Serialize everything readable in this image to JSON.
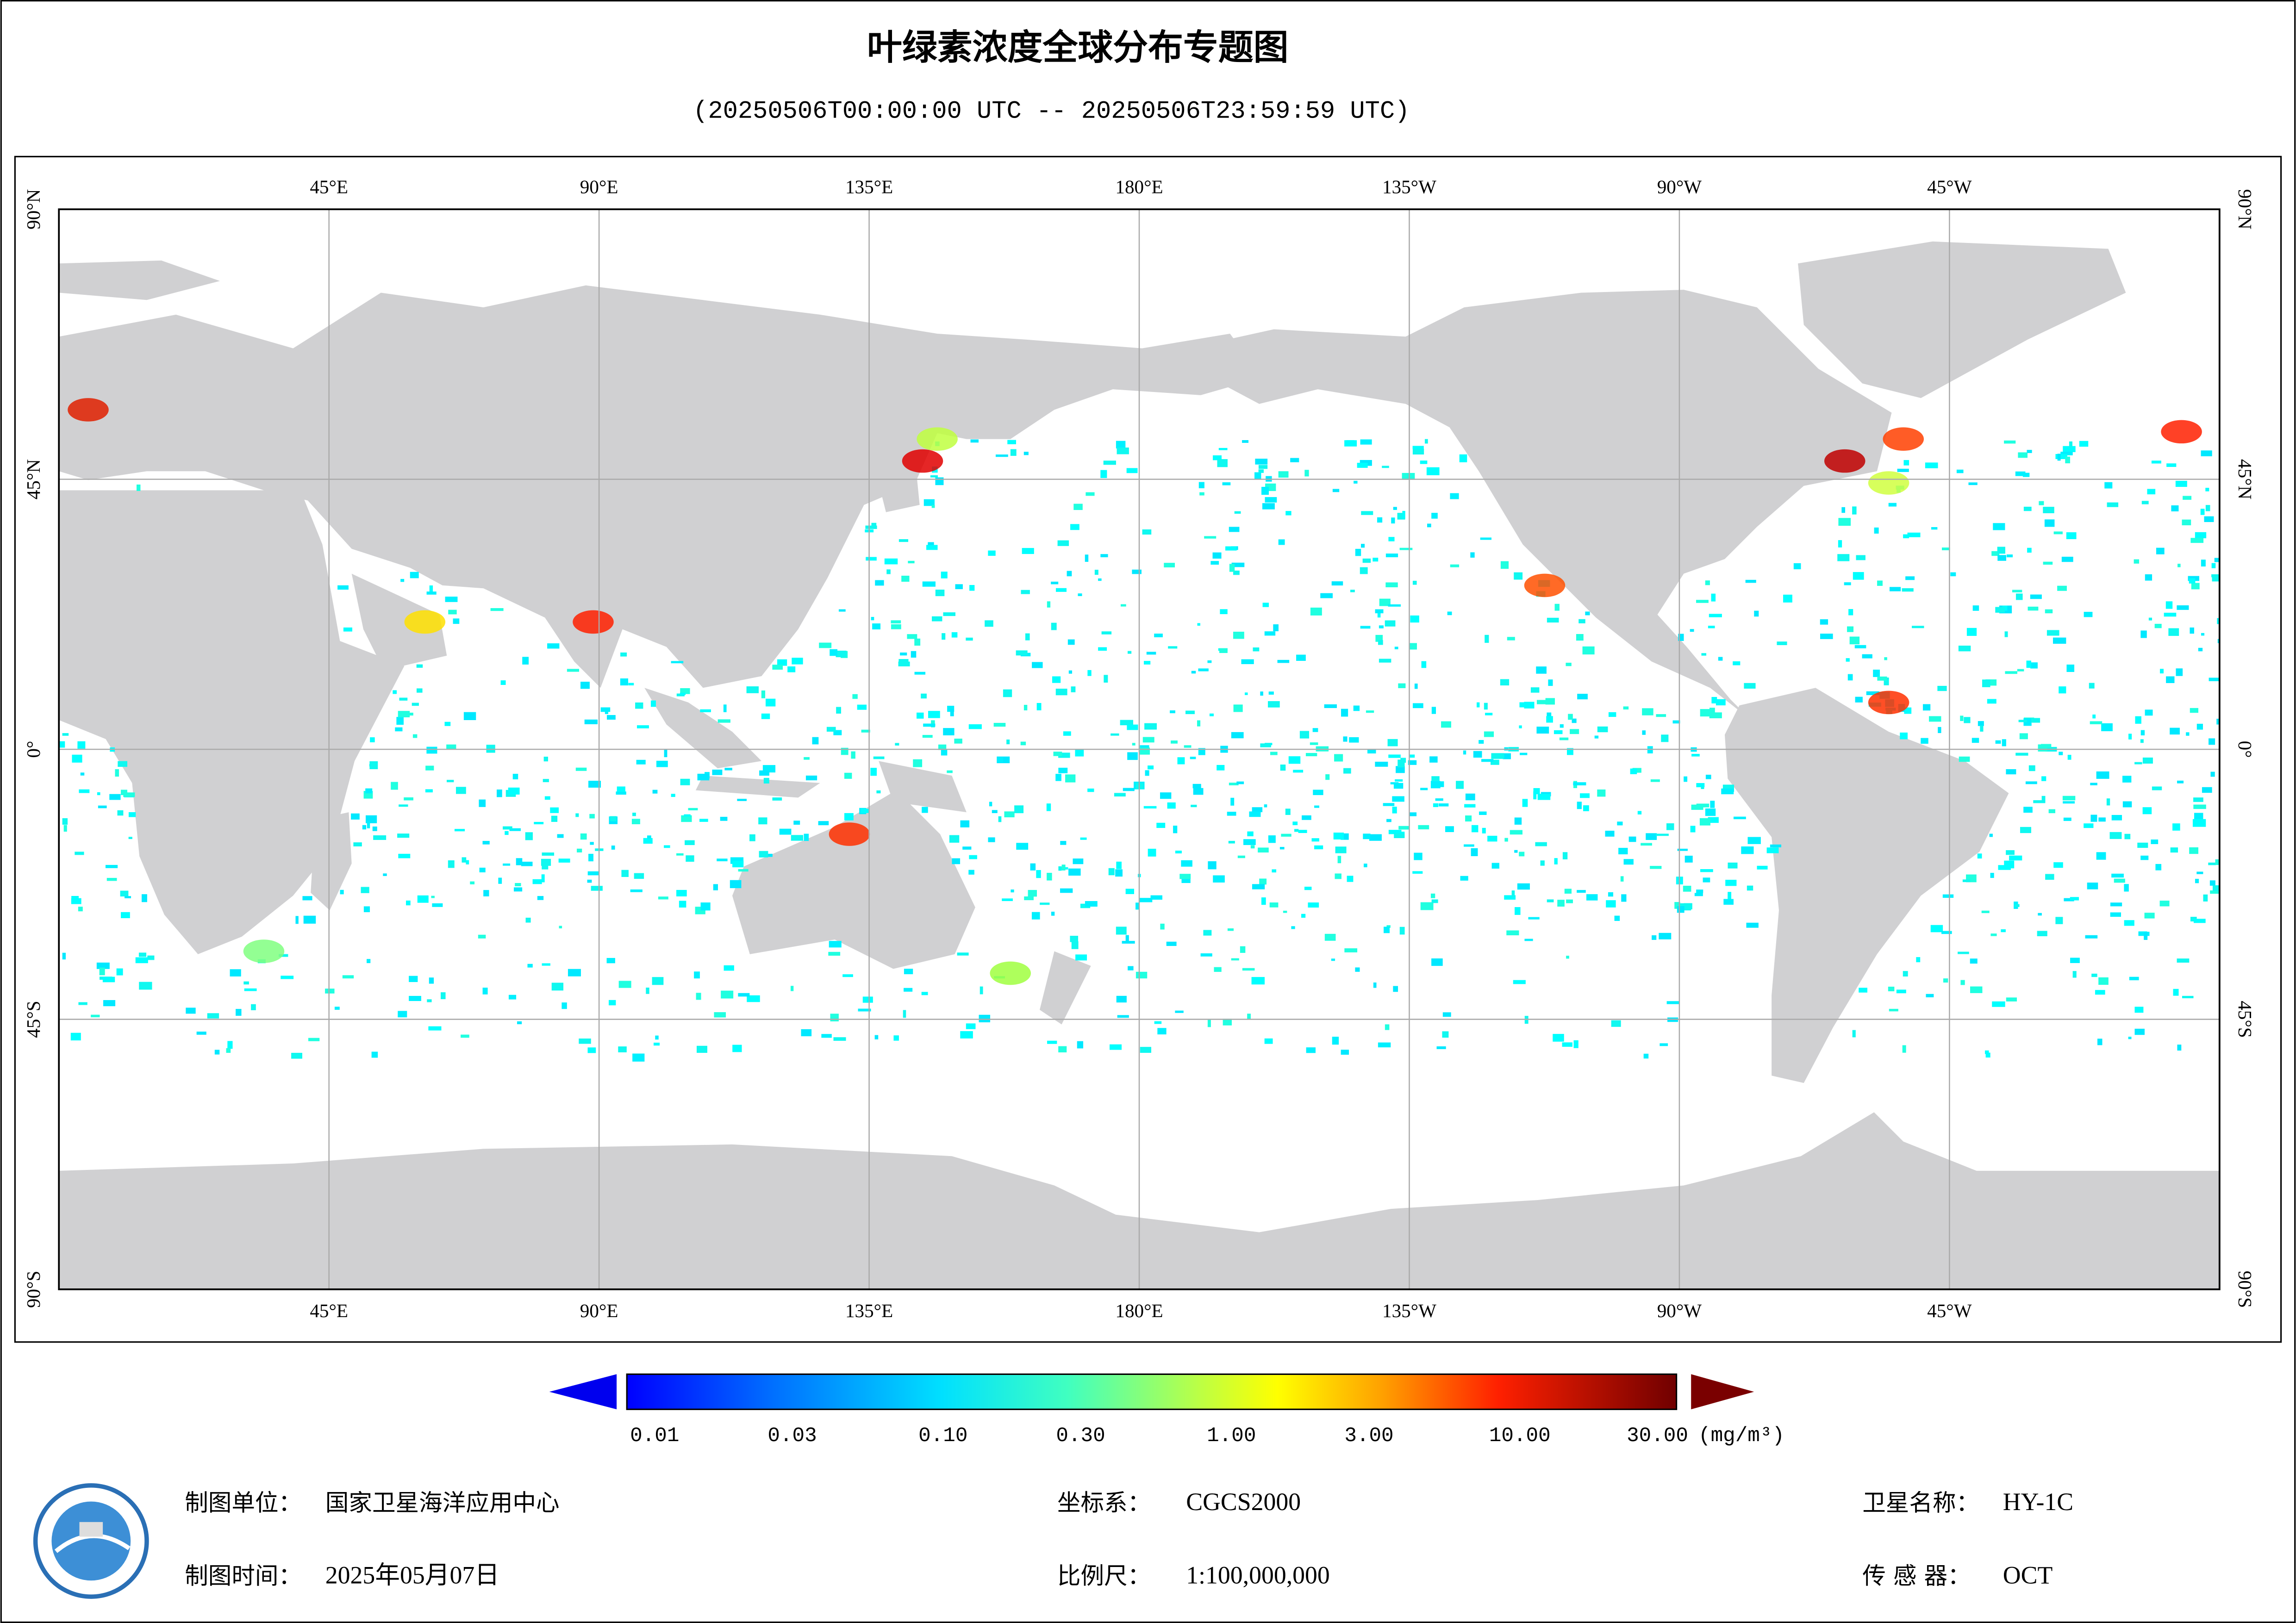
{
  "header": {
    "title": "叶绿素浓度全球分布专题图",
    "subtitle": "(20250506T00:00:00 UTC -- 20250506T23:59:59 UTC)"
  },
  "map": {
    "lon_range": [
      0,
      360
    ],
    "lat_range": [
      -90,
      90
    ],
    "lon_ticks": [
      {
        "value": 45,
        "label": "45°E"
      },
      {
        "value": 90,
        "label": "90°E"
      },
      {
        "value": 135,
        "label": "135°E"
      },
      {
        "value": 180,
        "label": "180°E"
      },
      {
        "value": 225,
        "label": "135°W"
      },
      {
        "value": 270,
        "label": "90°W"
      },
      {
        "value": 315,
        "label": "45°W"
      }
    ],
    "lat_ticks": [
      {
        "value": 90,
        "label": "90°N"
      },
      {
        "value": 45,
        "label": "45°N"
      },
      {
        "value": 0,
        "label": "0°"
      },
      {
        "value": -45,
        "label": "45°S"
      },
      {
        "value": -90,
        "label": "90°S"
      }
    ]
  },
  "colorbar": {
    "range": [
      0.01,
      30
    ],
    "scale": "log",
    "ticks": [
      0.01,
      0.03,
      {
        "value": 0.1,
        "label": "0.10"
      },
      {
        "value": 0.3,
        "label": "0.30"
      },
      {
        "value": 1,
        "label": "1.00"
      },
      {
        "value": 3,
        "label": "3.00"
      },
      {
        "value": 10,
        "label": "10.00"
      },
      {
        "value": 30,
        "label": "30.00"
      }
    ],
    "unit": "(mg/m³)"
  },
  "footer": {
    "unit": {
      "label": "制图单位：",
      "value": "国家卫星海洋应用中心"
    },
    "date": {
      "label": "制图时间：",
      "value": "2025年05月07日"
    },
    "crs": {
      "label": "坐标系：",
      "value": "CGCS2000"
    },
    "scale": {
      "label": "比例尺：",
      "value": "1:100,000,000"
    },
    "satellite": {
      "label": "卫星名称：",
      "value": "HY-1C"
    },
    "sensor": {
      "label": "传 感 器：",
      "value": "OCT"
    }
  }
}
